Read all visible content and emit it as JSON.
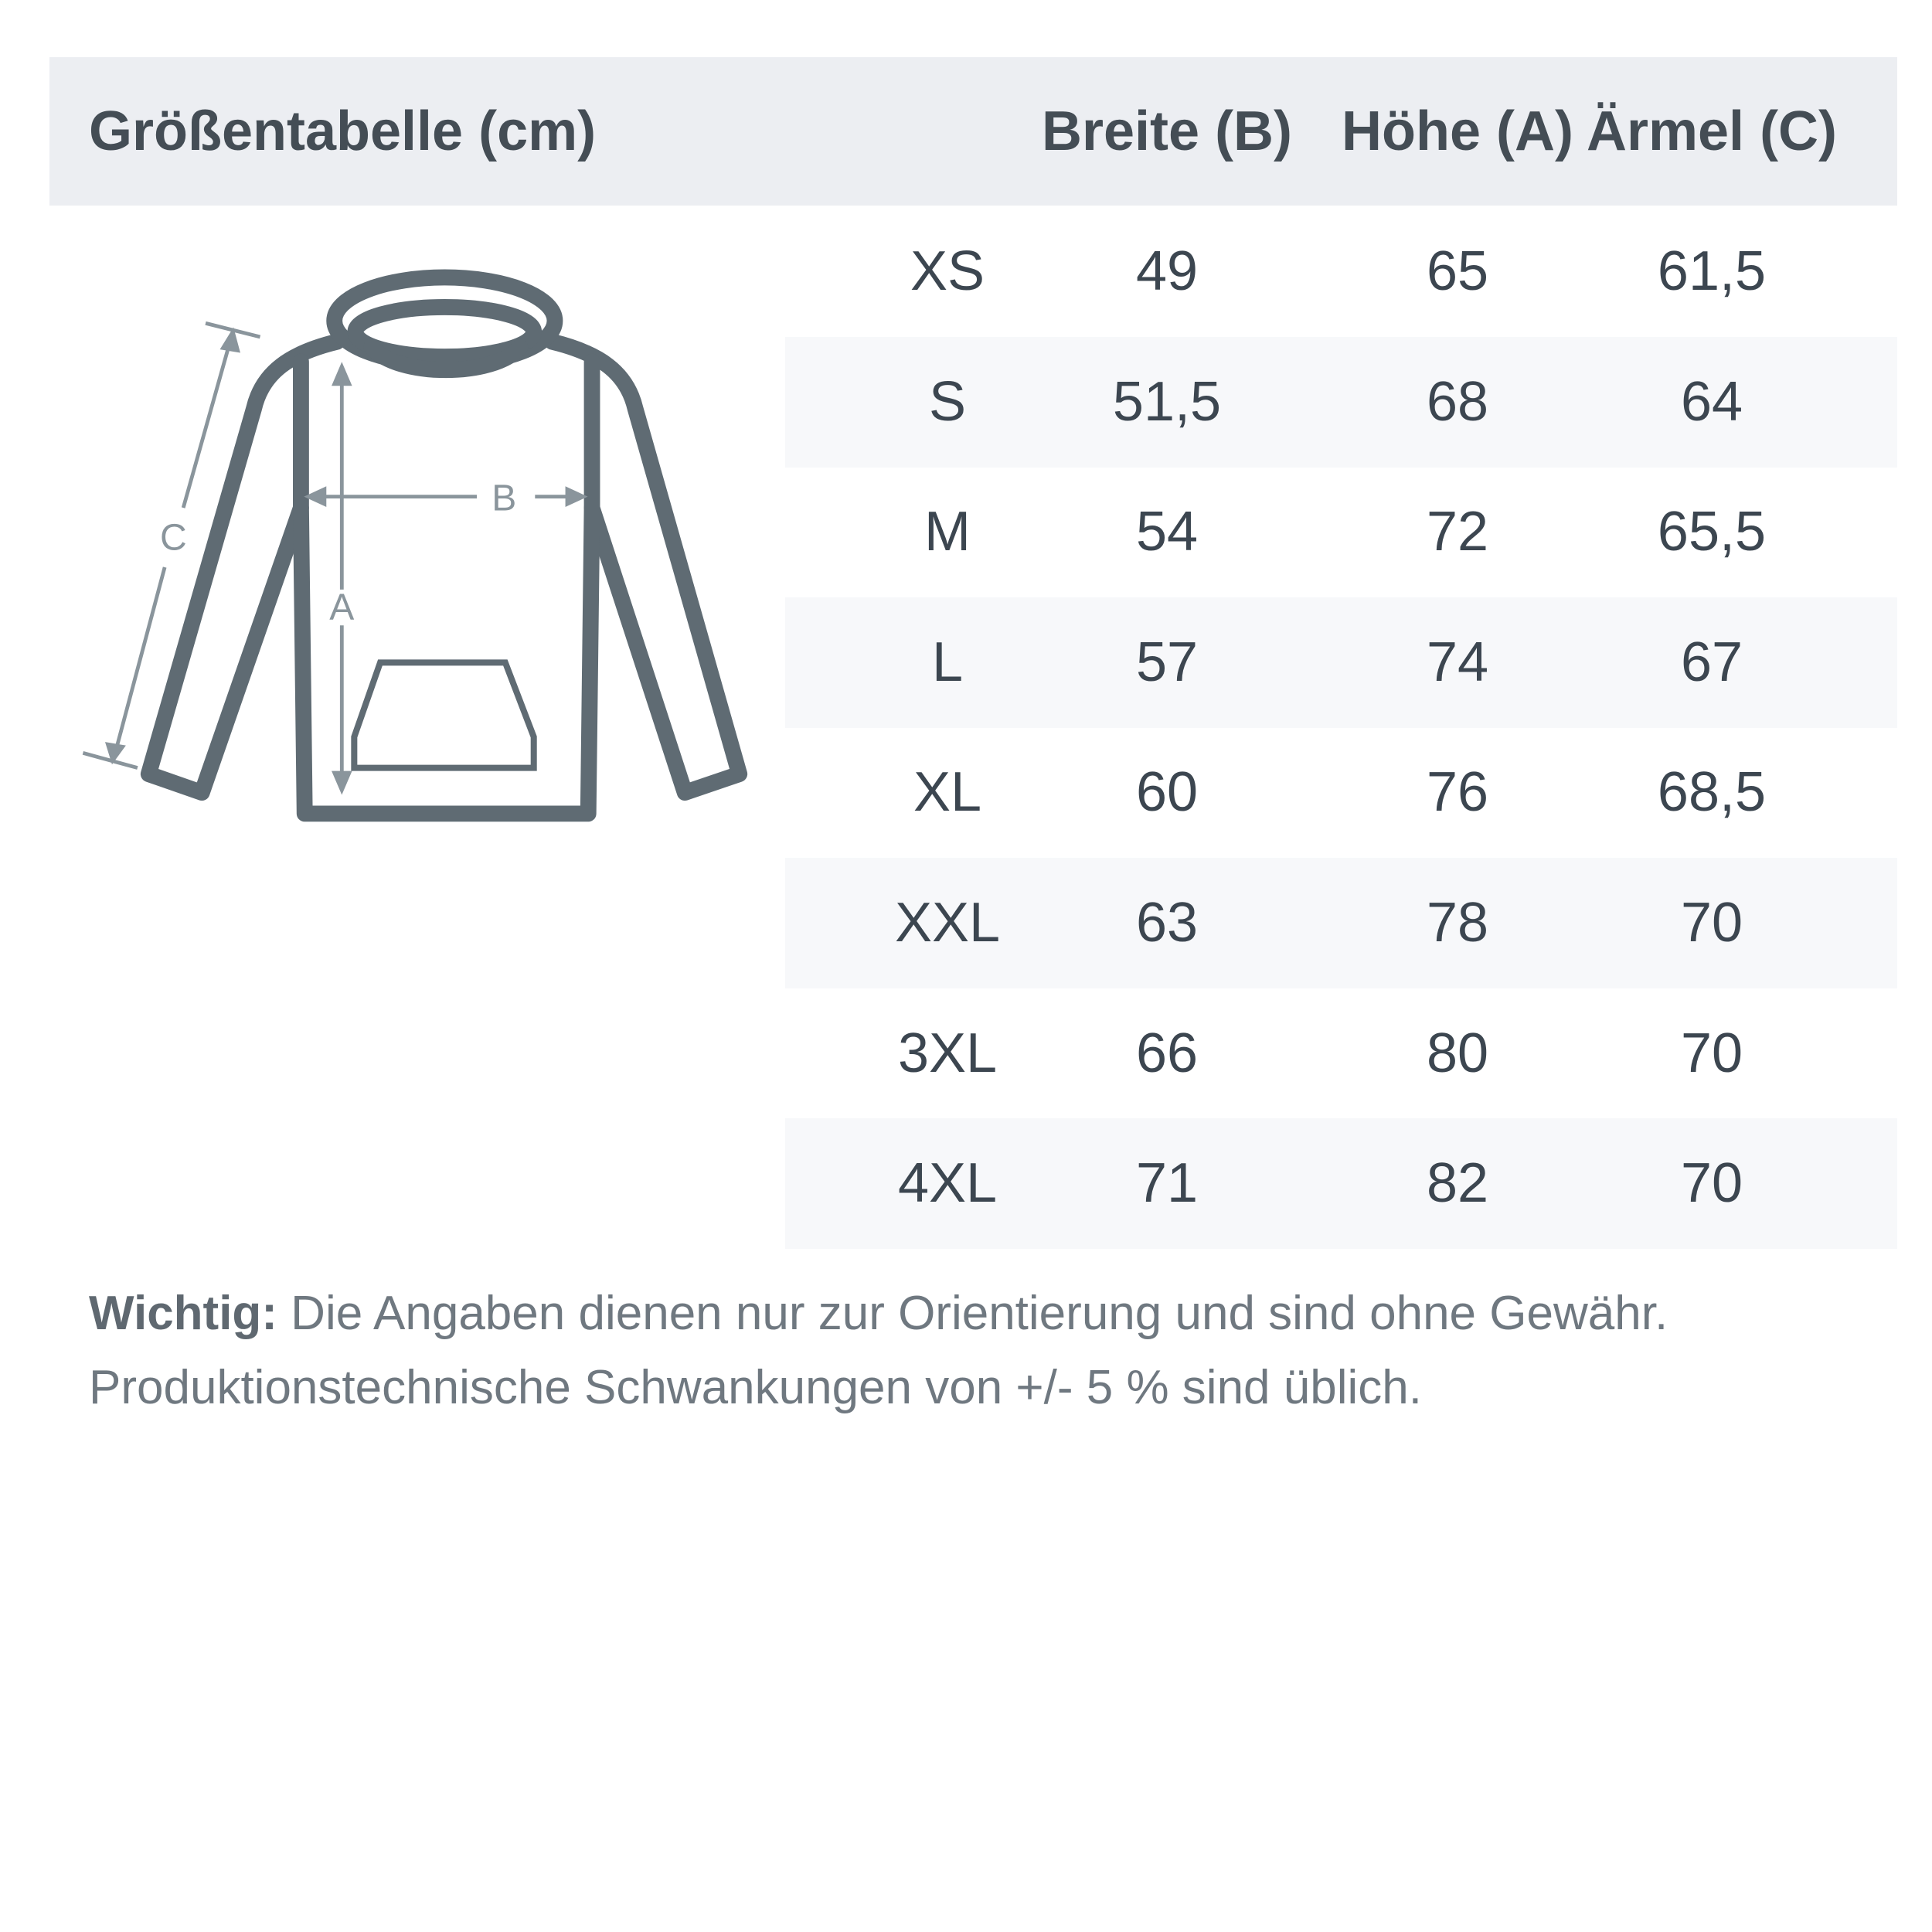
{
  "header": {
    "title": "Größentabelle (cm)",
    "columns": [
      "Breite (B)",
      "Höhe (A)",
      "Ärmel (C)"
    ]
  },
  "diagram": {
    "labels": {
      "a": "A",
      "b": "B",
      "c": "C"
    }
  },
  "rows": [
    {
      "size": "XS",
      "breite": "49",
      "hoehe": "65",
      "aermel": "61,5"
    },
    {
      "size": "S",
      "breite": "51,5",
      "hoehe": "68",
      "aermel": "64"
    },
    {
      "size": "M",
      "breite": "54",
      "hoehe": "72",
      "aermel": "65,5"
    },
    {
      "size": "L",
      "breite": "57",
      "hoehe": "74",
      "aermel": "67"
    },
    {
      "size": "XL",
      "breite": "60",
      "hoehe": "76",
      "aermel": "68,5"
    },
    {
      "size": "XXL",
      "breite": "63",
      "hoehe": "78",
      "aermel": "70"
    },
    {
      "size": "3XL",
      "breite": "66",
      "hoehe": "80",
      "aermel": "70"
    },
    {
      "size": "4XL",
      "breite": "71",
      "hoehe": "82",
      "aermel": "70"
    }
  ],
  "footer": {
    "label": "Wichtig:",
    "line1": " Die Angaben dienen nur zur Orientierung und sind ohne Gewähr.",
    "line2": "Produktionstechnische Schwankungen von +/- 5 % sind üblich."
  }
}
